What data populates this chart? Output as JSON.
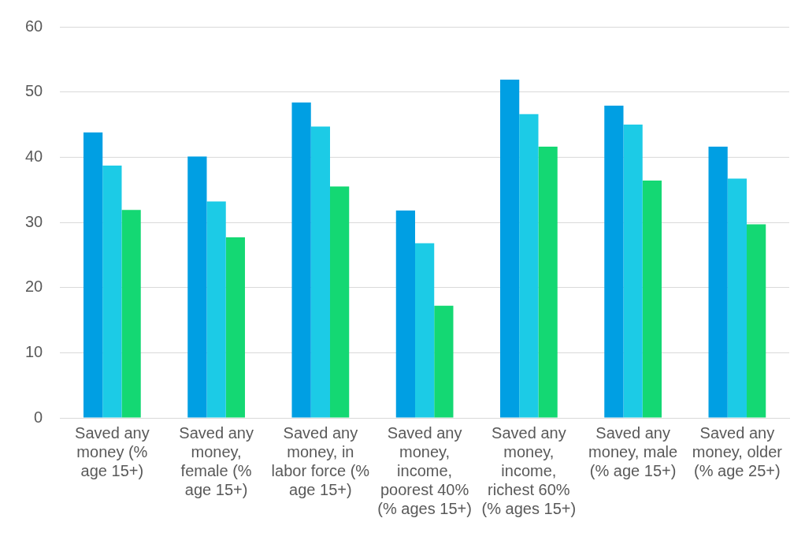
{
  "chart_data": {
    "type": "bar",
    "categories": [
      "Saved any money (% age 15+)",
      "Saved any money, female (% age 15+)",
      "Saved any money, in labor force (% age 15+)",
      "Saved any money, income, poorest 40% (% ages 15+)",
      "Saved any money, income, richest 60% (% ages 15+)",
      "Saved any money, male (% age 15+)",
      "Saved any money, older (% age 25+)"
    ],
    "series": [
      {
        "color": "#009fe3",
        "values": [
          43.8,
          40.1,
          48.4,
          31.8,
          51.9,
          47.9,
          41.6
        ]
      },
      {
        "color": "#1ccbe6",
        "values": [
          38.7,
          33.2,
          44.7,
          26.8,
          46.6,
          45.0,
          36.7
        ]
      },
      {
        "color": "#14d873",
        "values": [
          31.9,
          27.7,
          35.5,
          17.2,
          41.6,
          36.4,
          29.7
        ]
      }
    ],
    "ylim": [
      0,
      60
    ],
    "yticks": [
      0,
      10,
      20,
      30,
      40,
      50,
      60
    ],
    "grid": "y",
    "legend": false
  }
}
